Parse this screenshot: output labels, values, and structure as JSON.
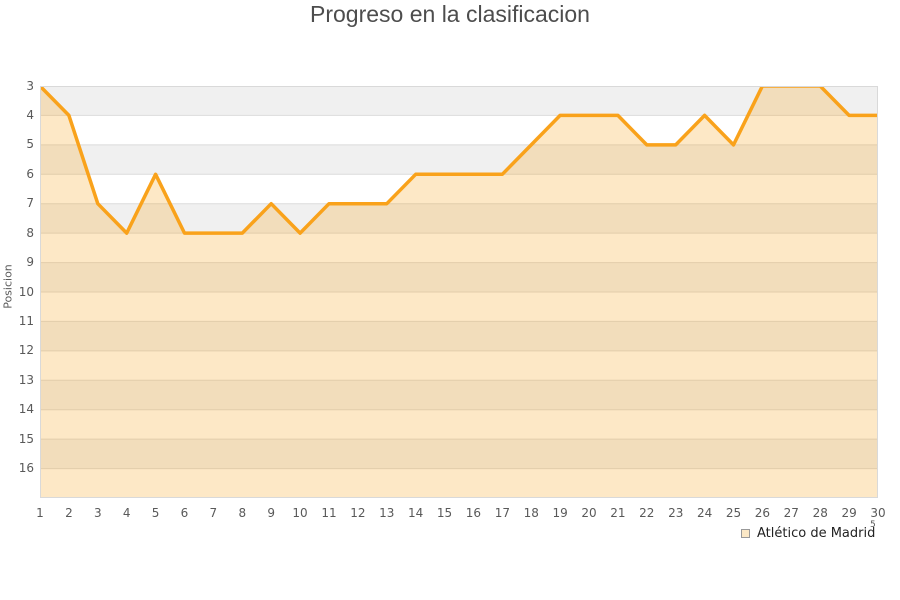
{
  "title": "Progreso en la clasificacion",
  "chart_data": {
    "type": "area",
    "title": "Progreso en la clasificacion",
    "xlabel": "",
    "ylabel": "Posicion",
    "x": [
      1,
      2,
      3,
      4,
      5,
      6,
      7,
      8,
      9,
      10,
      11,
      12,
      13,
      14,
      15,
      16,
      17,
      18,
      19,
      20,
      21,
      22,
      23,
      24,
      25,
      26,
      27,
      28,
      29,
      30
    ],
    "series": [
      {
        "name": "Atlético de Madrid",
        "values": [
          3,
          4,
          7,
          8,
          6,
          8,
          8,
          8,
          7,
          8,
          7,
          7,
          7,
          6,
          6,
          6,
          6,
          5,
          4,
          4,
          4,
          5,
          5,
          4,
          5,
          3,
          3,
          3,
          4,
          4
        ]
      }
    ],
    "y_ticks": [
      3,
      4,
      5,
      6,
      7,
      8,
      9,
      10,
      11,
      12,
      13,
      14,
      15,
      16
    ],
    "ylim": [
      3,
      17
    ],
    "y_axis_inverted": true,
    "grid": "horizontal-bands",
    "legend_position": "bottom-right"
  },
  "legend": {
    "superscript": "5"
  },
  "colors": {
    "line": "#F9A21B",
    "area_fill": "rgba(249,162,27,0.25)",
    "band_shaded": "#F0F0F0",
    "band_plain": "#FFFFFF",
    "gridline": "#DBDBDB",
    "plot_border": "#D9D9D9",
    "title_text": "#4D4D4D",
    "tick_text": "#595959",
    "legend_swatch_fill": "#FBE8C6",
    "legend_swatch_border": "#999999"
  }
}
